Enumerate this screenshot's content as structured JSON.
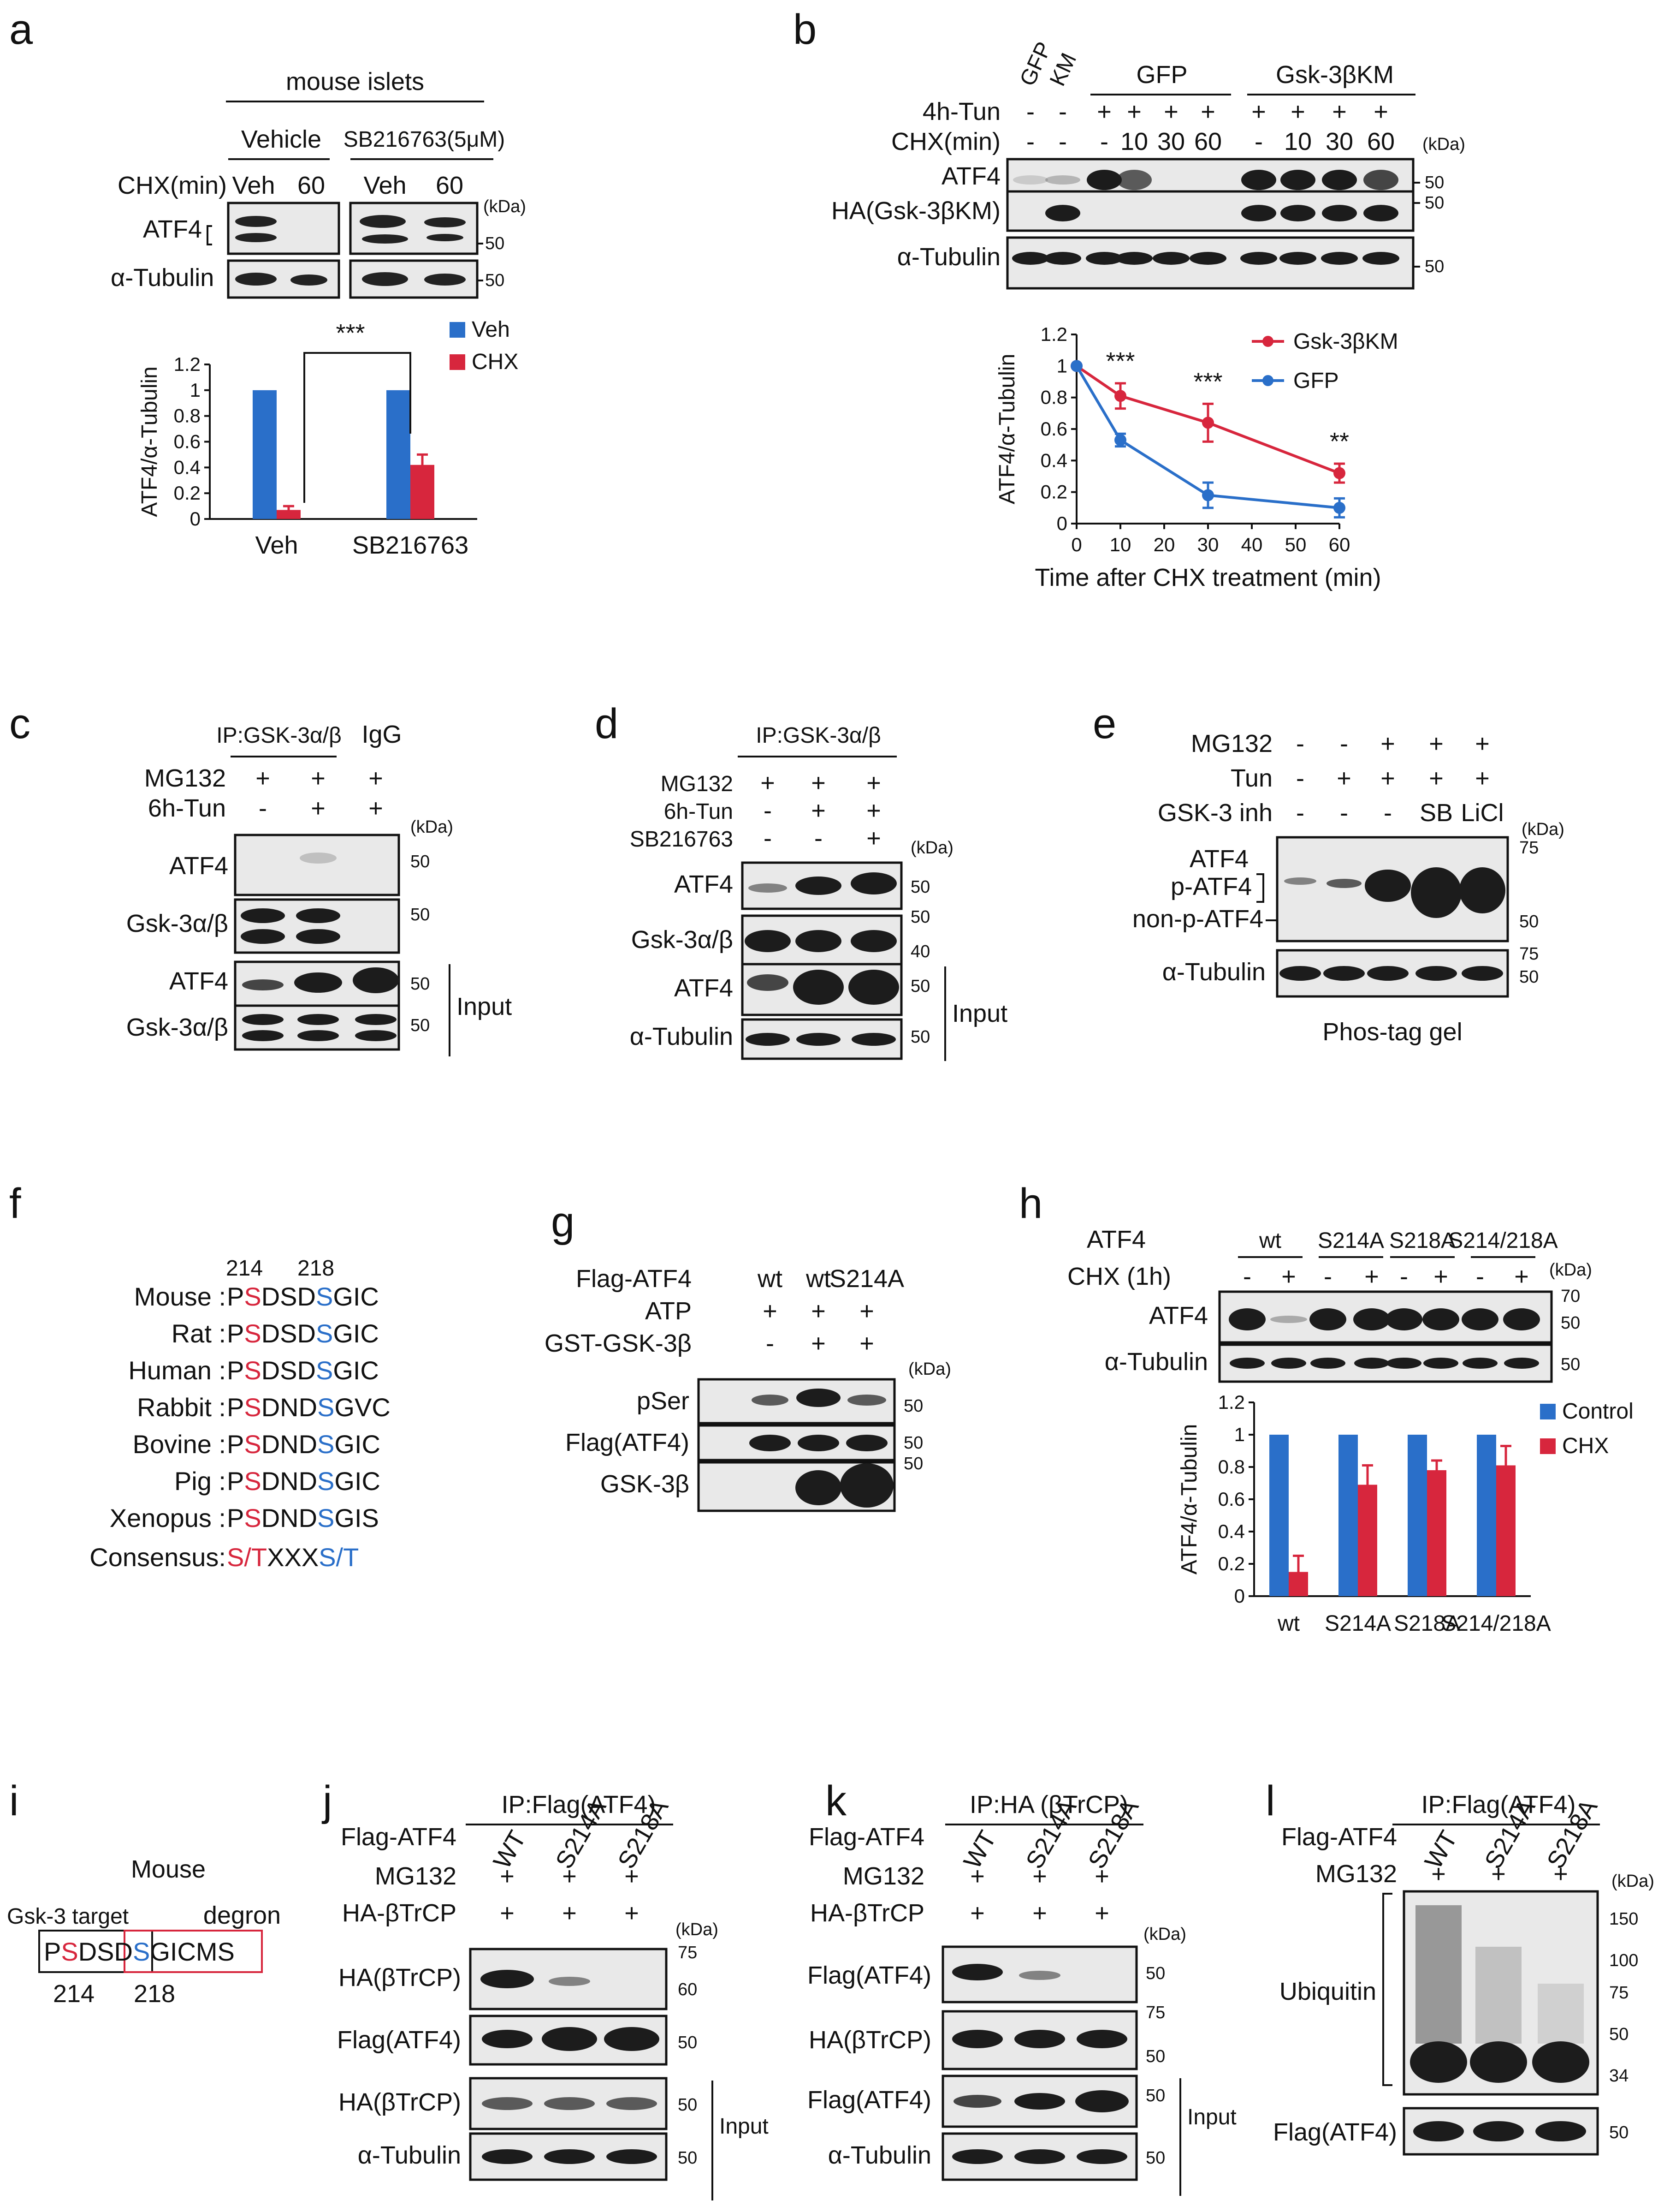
{
  "panels": {
    "a": {
      "label": "a",
      "title": "mouse islets",
      "groups": [
        "Vehicle",
        "SB216763(5μM)"
      ],
      "chx_label": "CHX(min)",
      "lanes": [
        "Veh",
        "60",
        "Veh",
        "60"
      ],
      "rows": [
        "ATF4",
        "α-Tubulin"
      ],
      "kda": "(kDa)",
      "mw": [
        "50",
        "50"
      ],
      "significance": "***"
    },
    "b": {
      "label": "b",
      "lane_top": [
        "GFP",
        "KM"
      ],
      "groups": [
        "GFP",
        "Gsk-3βKM"
      ],
      "tun_label": "4h-Tun",
      "chx_label": "CHX(min)",
      "tun_values": [
        "-",
        "-",
        "+",
        "+",
        "+",
        "+",
        "+",
        "+",
        "+",
        "+"
      ],
      "chx_values": [
        "-",
        "-",
        "-",
        "10",
        "30",
        "60",
        "-",
        "10",
        "30",
        "60"
      ],
      "rows": [
        "ATF4",
        "HA(Gsk-3βKM)",
        "α-Tubulin"
      ],
      "kda": "(kDa)",
      "mw": [
        "50",
        "50",
        "50"
      ],
      "significance": [
        "***",
        "***",
        "**"
      ]
    },
    "c": {
      "label": "c",
      "ip": "IP:GSK-3α/β",
      "igg": "IgG",
      "conditions": [
        {
          "name": "MG132",
          "values": [
            "+",
            "+",
            "+"
          ]
        },
        {
          "name": "6h-Tun",
          "values": [
            "-",
            "+",
            "+"
          ]
        }
      ],
      "rows": [
        "ATF4",
        "Gsk-3α/β",
        "ATF4",
        "Gsk-3α/β"
      ],
      "kda": "(kDa)",
      "mw": [
        "50",
        "50",
        "50",
        "50"
      ],
      "input": "Input"
    },
    "d": {
      "label": "d",
      "ip": "IP:GSK-3α/β",
      "conditions": [
        {
          "name": "MG132",
          "values": [
            "+",
            "+",
            "+"
          ]
        },
        {
          "name": "6h-Tun",
          "values": [
            "-",
            "+",
            "+"
          ]
        },
        {
          "name": "SB216763",
          "values": [
            "-",
            "-",
            "+"
          ]
        }
      ],
      "rows": [
        "ATF4",
        "Gsk-3α/β",
        "ATF4",
        "α-Tubulin"
      ],
      "kda": "(kDa)",
      "mw": [
        "50",
        "50",
        "40",
        "50",
        "50"
      ],
      "input": "Input"
    },
    "e": {
      "label": "e",
      "conditions": [
        {
          "name": "MG132",
          "values": [
            "-",
            "-",
            "+",
            "+",
            "+"
          ]
        },
        {
          "name": "Tun",
          "values": [
            "-",
            "+",
            "+",
            "+",
            "+"
          ]
        },
        {
          "name": "GSK-3 inh",
          "values": [
            "-",
            "-",
            "-",
            "SB",
            "LiCl"
          ]
        }
      ],
      "rows": [
        "ATF4",
        "p-ATF4",
        "non-p-ATF4",
        "α-Tubulin"
      ],
      "kda": "(kDa)",
      "mw": [
        "75",
        "50",
        "75",
        "50"
      ],
      "footer": "Phos-tag gel"
    },
    "f": {
      "label": "f",
      "positions": [
        "214",
        "218"
      ],
      "species": [
        {
          "name": "Mouse :",
          "pre": "P",
          "s1": "S",
          "mid": "DSD",
          "s2": "S",
          "post": "GIC"
        },
        {
          "name": "Rat :",
          "pre": "P",
          "s1": "S",
          "mid": "DSD",
          "s2": "S",
          "post": "GIC"
        },
        {
          "name": "Human :",
          "pre": "P",
          "s1": "S",
          "mid": "DSD",
          "s2": "S",
          "post": "GIC"
        },
        {
          "name": "Rabbit :",
          "pre": "P",
          "s1": "S",
          "mid": "DND",
          "s2": "S",
          "post": "GVC"
        },
        {
          "name": "Bovine :",
          "pre": "P",
          "s1": "S",
          "mid": "DND",
          "s2": "S",
          "post": "GIC"
        },
        {
          "name": "Pig :",
          "pre": "P",
          "s1": "S",
          "mid": "DND",
          "s2": "S",
          "post": "GIC"
        },
        {
          "name": "Xenopus :",
          "pre": "P",
          "s1": "S",
          "mid": "DND",
          "s2": "S",
          "post": "GIS"
        }
      ],
      "consensus_label": "Consensus:",
      "consensus_a": "S/T",
      "consensus_mid": "XXX",
      "consensus_b": "S/T"
    },
    "g": {
      "label": "g",
      "conditions": [
        {
          "name": "Flag-ATF4",
          "values": [
            "wt",
            "wt",
            "S214A"
          ]
        },
        {
          "name": "ATP",
          "values": [
            "+",
            "+",
            "+"
          ]
        },
        {
          "name": "GST-GSK-3β",
          "values": [
            "-",
            "+",
            "+"
          ]
        }
      ],
      "rows": [
        "pSer",
        "Flag(ATF4)",
        "GSK-3β"
      ],
      "kda": "(kDa)",
      "mw": [
        "50",
        "50",
        "50"
      ]
    },
    "h": {
      "label": "h",
      "atf4_label": "ATF4",
      "groups": [
        "wt",
        "S214A",
        "S218A",
        "S214/218A"
      ],
      "chx_label": "CHX (1h)",
      "chx_values": [
        "-",
        "+",
        "-",
        "+",
        "-",
        "+",
        "-",
        "+"
      ],
      "rows": [
        "ATF4",
        "α-Tubulin"
      ],
      "kda": "(kDa)",
      "mw": [
        "70",
        "50",
        "50"
      ]
    },
    "i": {
      "label": "i",
      "title": "Mouse",
      "gsk_label": "Gsk-3 target",
      "degron_label": "degron",
      "seq_p": "P",
      "seq_s1": "S",
      "seq_d1": "D",
      "seq_s2": "S",
      "seq_d2": "D",
      "seq_s3": "S",
      "seq_rest": "GICMS",
      "pos": [
        "214",
        "218"
      ]
    },
    "j": {
      "label": "j",
      "ip": "IP:Flag(ATF4)",
      "lanes": [
        "WT",
        "S214A",
        "S218A"
      ],
      "conditions": [
        {
          "name": "Flag-ATF4",
          "values": []
        },
        {
          "name": "MG132",
          "values": [
            "+",
            "+",
            "+"
          ]
        },
        {
          "name": "HA-βTrCP",
          "values": [
            "+",
            "+",
            "+"
          ]
        }
      ],
      "rows": [
        "HA(βTrCP)",
        "Flag(ATF4)",
        "HA(βTrCP)",
        "α-Tubulin"
      ],
      "kda": "(kDa)",
      "mw": [
        "75",
        "60",
        "50",
        "50",
        "50"
      ],
      "input": "Input"
    },
    "k": {
      "label": "k",
      "ip": "IP:HA (βTrCP)",
      "lanes": [
        "WT",
        "S214A",
        "S218A"
      ],
      "conditions": [
        {
          "name": "Flag-ATF4",
          "values": []
        },
        {
          "name": "MG132",
          "values": [
            "+",
            "+",
            "+"
          ]
        },
        {
          "name": "HA-βTrCP",
          "values": [
            "+",
            "+",
            "+"
          ]
        }
      ],
      "rows": [
        "Flag(ATF4)",
        "HA(βTrCP)",
        "Flag(ATF4)",
        "α-Tubulin"
      ],
      "kda": "(kDa)",
      "mw": [
        "50",
        "75",
        "50",
        "50",
        "50"
      ],
      "input": "Input"
    },
    "l": {
      "label": "l",
      "ip": "IP:Flag(ATF4)",
      "lanes": [
        "WT",
        "S214A",
        "S218A"
      ],
      "conditions": [
        {
          "name": "Flag-ATF4",
          "values": []
        },
        {
          "name": "MG132",
          "values": [
            "+",
            "+",
            "+"
          ]
        }
      ],
      "rows": [
        "Ubiquitin",
        "Flag(ATF4)"
      ],
      "kda": "(kDa)",
      "mw": [
        "150",
        "100",
        "75",
        "50",
        "34",
        "50"
      ]
    }
  },
  "chart_data": [
    {
      "type": "bar",
      "panel": "a",
      "categories": [
        "Veh",
        "SB216763"
      ],
      "series": [
        {
          "name": "Veh",
          "color": "#2a6fc9",
          "values": [
            1.0,
            1.0
          ],
          "errors": [
            0,
            0
          ]
        },
        {
          "name": "CHX",
          "color": "#d7263d",
          "values": [
            0.07,
            0.42
          ],
          "errors": [
            0.03,
            0.08
          ]
        }
      ],
      "ylabel": "ATF4/α-Tubulin",
      "ylim": [
        0,
        1.2
      ],
      "yticks": [
        "0",
        "0.2",
        "0.4",
        "0.6",
        "0.8",
        "1",
        "1.2"
      ],
      "legend": "top-right"
    },
    {
      "type": "line",
      "panel": "b",
      "x": [
        0,
        10,
        30,
        60
      ],
      "series": [
        {
          "name": "Gsk-3βKM",
          "color": "#d7263d",
          "values": [
            1.0,
            0.81,
            0.64,
            0.32
          ],
          "errors": [
            0,
            0.08,
            0.12,
            0.06
          ]
        },
        {
          "name": "GFP",
          "color": "#2a6fc9",
          "values": [
            1.0,
            0.53,
            0.18,
            0.1
          ],
          "errors": [
            0,
            0.04,
            0.08,
            0.06
          ]
        }
      ],
      "xlabel": "Time after CHX treatment (min)",
      "ylabel": "ATF4/α-Tubulin",
      "xlim": [
        0,
        60
      ],
      "ylim": [
        0,
        1.2
      ],
      "xticks": [
        "0",
        "10",
        "20",
        "30",
        "40",
        "50",
        "60"
      ],
      "yticks": [
        "0",
        "0.2",
        "0.4",
        "0.6",
        "0.8",
        "1",
        "1.2"
      ],
      "legend": "top-right"
    },
    {
      "type": "bar",
      "panel": "h",
      "categories": [
        "wt",
        "S214A",
        "S218A",
        "S214/218A"
      ],
      "series": [
        {
          "name": "Control",
          "color": "#2a6fc9",
          "values": [
            1.0,
            1.0,
            1.0,
            1.0
          ],
          "errors": [
            0,
            0,
            0,
            0
          ]
        },
        {
          "name": "CHX",
          "color": "#d7263d",
          "values": [
            0.15,
            0.69,
            0.78,
            0.81
          ],
          "errors": [
            0.1,
            0.12,
            0.06,
            0.12
          ]
        }
      ],
      "ylabel": "ATF4/α-Tubulin",
      "ylim": [
        0,
        1.2
      ],
      "yticks": [
        "0",
        "0.2",
        "0.4",
        "0.6",
        "0.8",
        "1",
        "1.2"
      ],
      "legend": "top-right"
    }
  ]
}
